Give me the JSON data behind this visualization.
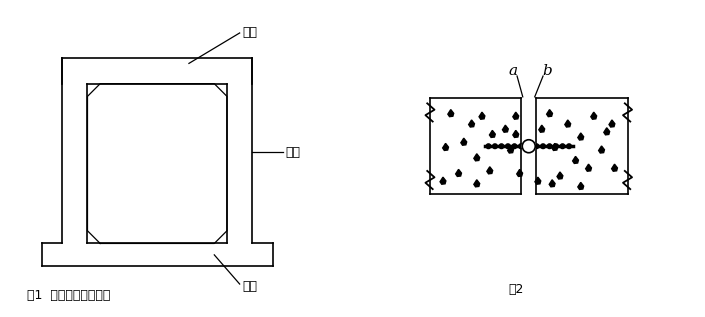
{
  "fig1_caption": "图1  清水池断面示意图",
  "fig2_caption": "图2",
  "label_top": "顶板",
  "label_wall": "池壁",
  "label_bottom": "底板",
  "label_a": "a",
  "label_b": "b",
  "bg_color": "#ffffff",
  "line_color": "#000000"
}
